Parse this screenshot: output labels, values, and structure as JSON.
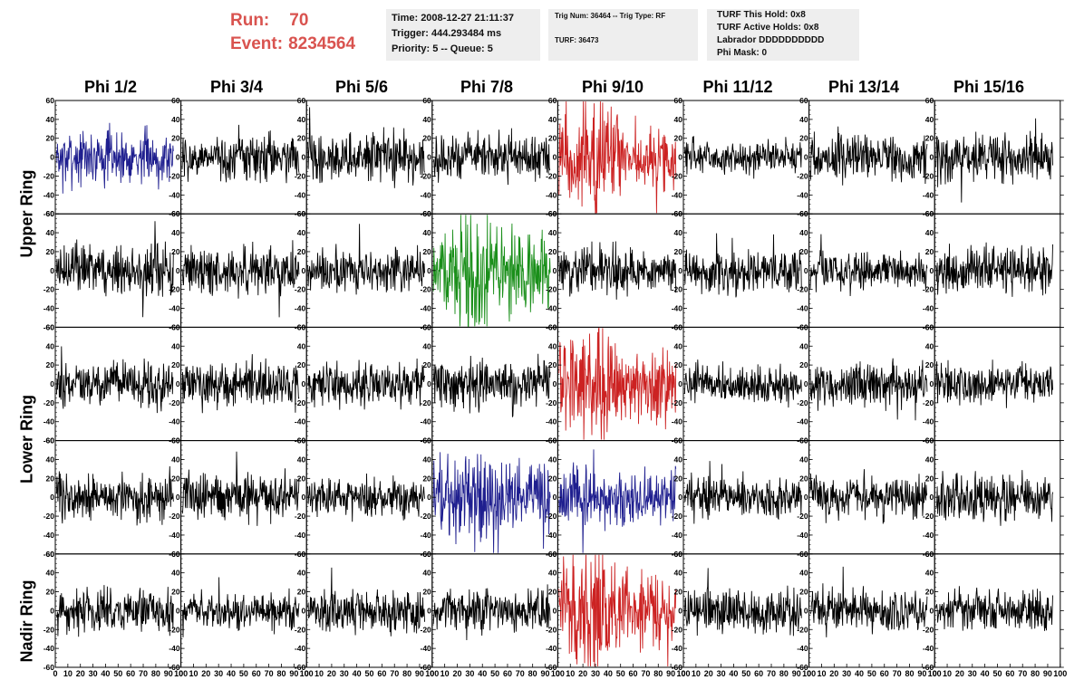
{
  "header": {
    "run_label": "Run:",
    "run_value": "70",
    "event_label": "Event:",
    "event_value": "8234564",
    "time_line": "Time: 2008-12-27 21:11:37",
    "trigger_line": "Trigger: 444.293484 ms",
    "priority_line": "Priority: 5 -- Queue: 5",
    "trig_line": "Trig Num: 36464 -- Trig Type: RF",
    "turf_line": "TURF: 36473",
    "turf_hold": "TURF This Hold: 0x8",
    "turf_active": "TURF Active Holds: 0x8",
    "labrador": "Labrador DDDDDDDDDD",
    "phi_mask": "Phi Mask: 0"
  },
  "columns": [
    "Phi 1/2",
    "Phi 3/4",
    "Phi 5/6",
    "Phi 7/8",
    "Phi 9/10",
    "Phi 11/12",
    "Phi 13/14",
    "Phi 15/16"
  ],
  "row_groups": [
    "Upper Ring",
    "Lower Ring",
    "Nadir Ring"
  ],
  "colors": {
    "default": "#000000",
    "blue": "#1f1f8f",
    "red": "#cc2222",
    "green": "#1a8f1a",
    "header_red": "#d9534f"
  },
  "chart_data": {
    "type": "line",
    "grid": false,
    "ylim": [
      -60,
      60
    ],
    "yticks": [
      -60,
      -40,
      -20,
      0,
      20,
      40,
      60
    ],
    "xlim": [
      0,
      100
    ],
    "xticks": [
      0,
      10,
      20,
      30,
      40,
      50,
      60,
      70,
      80,
      90,
      100
    ],
    "panel_rows": 5,
    "panel_cols": 8,
    "panel_amplitude": [
      [
        15,
        13,
        14,
        13,
        22,
        10,
        13,
        14
      ],
      [
        14,
        13,
        12,
        22,
        13,
        12,
        11,
        13
      ],
      [
        13,
        12,
        12,
        15,
        22,
        11,
        13,
        12
      ],
      [
        13,
        13,
        12,
        20,
        16,
        12,
        12,
        13
      ],
      [
        12,
        11,
        12,
        12,
        22,
        12,
        12,
        12
      ]
    ],
    "highlight": [
      {
        "row": 0,
        "col": 0,
        "color": "blue"
      },
      {
        "row": 0,
        "col": 4,
        "color": "red"
      },
      {
        "row": 1,
        "col": 3,
        "color": "green"
      },
      {
        "row": 2,
        "col": 4,
        "color": "red"
      },
      {
        "row": 3,
        "col": 3,
        "color": "blue"
      },
      {
        "row": 3,
        "col": 4,
        "color": "blue"
      },
      {
        "row": 4,
        "col": 4,
        "color": "red"
      }
    ],
    "pulse": [
      {
        "row": 0,
        "col": 4,
        "center": 30,
        "width": 15,
        "gain": 1.8
      },
      {
        "row": 1,
        "col": 3,
        "center": 35,
        "width": 18,
        "gain": 1.8
      },
      {
        "row": 2,
        "col": 4,
        "center": 30,
        "width": 15,
        "gain": 1.8
      },
      {
        "row": 3,
        "col": 3,
        "center": 35,
        "width": 20,
        "gain": 1.6
      },
      {
        "row": 4,
        "col": 4,
        "center": 25,
        "width": 15,
        "gain": 2.0
      }
    ]
  }
}
